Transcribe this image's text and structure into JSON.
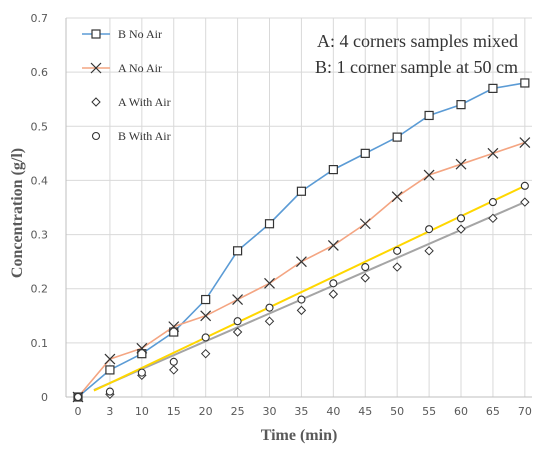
{
  "chart_data": {
    "type": "line",
    "title": "",
    "xlabel": "Time (min)",
    "ylabel": "Concentration (g/l)",
    "x_tick_labels": [
      "0",
      "3",
      "10",
      "15",
      "20",
      "25",
      "30",
      "35",
      "40",
      "45",
      "50",
      "55",
      "60",
      "65",
      "70"
    ],
    "y_tick_labels": [
      "0",
      "0.1",
      "0.2",
      "0.3",
      "0.4",
      "0.5",
      "0.6",
      "0.7"
    ],
    "ylim": [
      0,
      0.7
    ],
    "grid": true,
    "legend_position": "top-left",
    "annotations": [
      "A: 4 corners samples mixed",
      "B: 1 corner sample at 50 cm"
    ],
    "x": [
      0,
      3,
      10,
      15,
      20,
      25,
      30,
      35,
      40,
      45,
      50,
      55,
      60,
      65,
      70
    ],
    "series": [
      {
        "name": "B No Air",
        "marker": "square",
        "color": "#5b9bd5",
        "values": [
          0,
          0.05,
          0.08,
          0.12,
          0.18,
          0.27,
          0.32,
          0.38,
          0.42,
          0.45,
          0.48,
          0.52,
          0.54,
          0.57,
          0.58
        ]
      },
      {
        "name": "A No Air",
        "marker": "x",
        "color": "#f4a582",
        "values": [
          0,
          0.07,
          0.09,
          0.13,
          0.15,
          0.18,
          0.21,
          0.25,
          0.28,
          0.32,
          0.37,
          0.41,
          0.43,
          0.45,
          0.47
        ]
      },
      {
        "name": "A With Air",
        "marker": "diamond",
        "color": "#a5a5a5",
        "values": [
          0,
          0.005,
          0.04,
          0.05,
          0.08,
          0.12,
          0.14,
          0.16,
          0.19,
          0.22,
          0.24,
          0.27,
          0.31,
          0.33,
          0.36
        ]
      },
      {
        "name": "B With Air",
        "marker": "circle",
        "color": "#ffd700",
        "values": [
          0,
          0.01,
          0.045,
          0.065,
          0.11,
          0.14,
          0.165,
          0.18,
          0.21,
          0.24,
          0.27,
          0.31,
          0.33,
          0.36,
          0.39
        ]
      }
    ]
  }
}
